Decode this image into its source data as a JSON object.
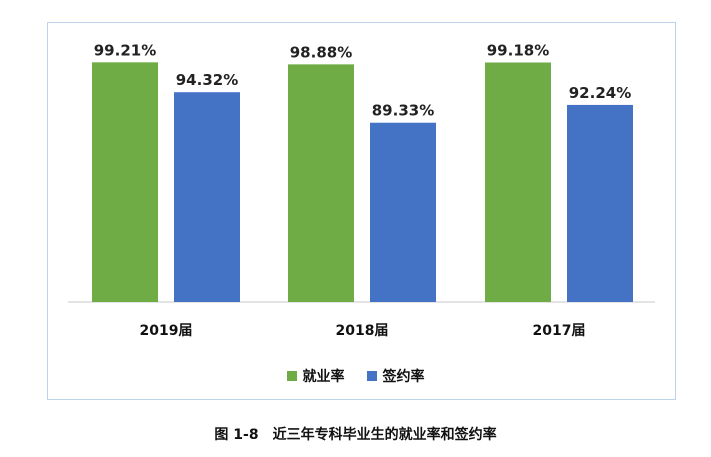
{
  "caption": "图 1-8　近三年专科毕业生的就业率和签约率",
  "colors": {
    "employment": "#6fac46",
    "signing": "#4472c4"
  },
  "chart_data": {
    "type": "bar",
    "categories": [
      "2019届",
      "2018届",
      "2017届"
    ],
    "series": [
      {
        "name": "就业率",
        "values": [
          99.21,
          98.88,
          99.18
        ],
        "labels": [
          "99.21%",
          "98.88%",
          "99.18%"
        ]
      },
      {
        "name": "签约率",
        "values": [
          94.32,
          89.33,
          92.24
        ],
        "labels": [
          "94.32%",
          "89.33%",
          "92.24%"
        ]
      }
    ],
    "ylim": [
      60,
      100
    ],
    "grid": false,
    "legend_position": "bottom"
  }
}
